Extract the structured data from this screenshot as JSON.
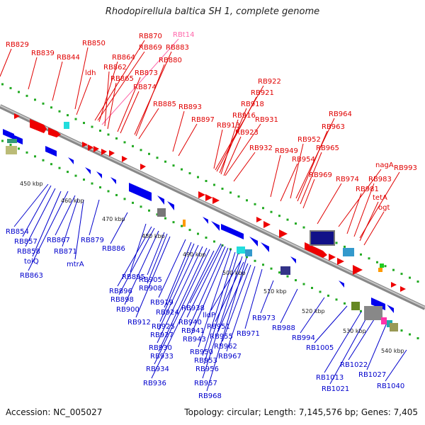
{
  "title": "Rhodopirellula baltica SH 1, complete genome",
  "footer": {
    "accession": "Accession: NC_005027",
    "summary": "Topology: circular; Length: 7,145,576 bp; Genes: 7,405"
  },
  "colors": {
    "forward_label": "#e00000",
    "reverse_label": "#0000cc",
    "rna_label": "#ff66aa",
    "forward_gene": "#ee0000",
    "reverse_gene": "#0000ee",
    "backbone": "#999999",
    "dots": "#22aa22"
  },
  "scale_labels": [
    "450 kbp",
    "460 kbp",
    "470 kbp",
    "480 kbp",
    "490 kbp",
    "500 kbp",
    "510 kbp",
    "520 kbp",
    "530 kbp",
    "540 kbp"
  ],
  "forward_labels": [
    "RB829",
    "RB839",
    "RB844",
    "RB850",
    "ldh",
    "RB870",
    "RBt14",
    "RB869",
    "RB864",
    "RB883",
    "RB862",
    "RB880",
    "RB865",
    "RB873",
    "RB874",
    "RB885",
    "RB893",
    "RB897",
    "RB922",
    "RB921",
    "RB918",
    "RB916",
    "RB913",
    "RB931",
    "RB923",
    "RB932",
    "RB964",
    "RB963",
    "RB952",
    "RB965",
    "RB949",
    "RB954",
    "RB969",
    "nagA",
    "RB993",
    "RB974",
    "RB983",
    "RB981",
    "tetA",
    "ogt"
  ],
  "reverse_labels": [
    "RB854",
    "RB857",
    "RB858",
    "tolQ",
    "RB863",
    "RB867",
    "RB871",
    "mtrA",
    "RB879",
    "RB886",
    "RB895",
    "RB896",
    "RB898",
    "RB900",
    "RB905",
    "RB908",
    "RB912",
    "RB919",
    "RB924",
    "RB925",
    "RB927",
    "RB930",
    "RB933",
    "RB934",
    "RB936",
    "RB938",
    "RB940",
    "RB941",
    "RB943",
    "RB950",
    "RB953",
    "RB956",
    "RB957",
    "RB968",
    "lldP",
    "RB951",
    "RB955",
    "RB962",
    "RB967",
    "RB971",
    "RB973",
    "RB988",
    "RB994",
    "RB1005",
    "RB1013",
    "RB1021",
    "RB1022",
    "RB1027",
    "RB1040"
  ]
}
